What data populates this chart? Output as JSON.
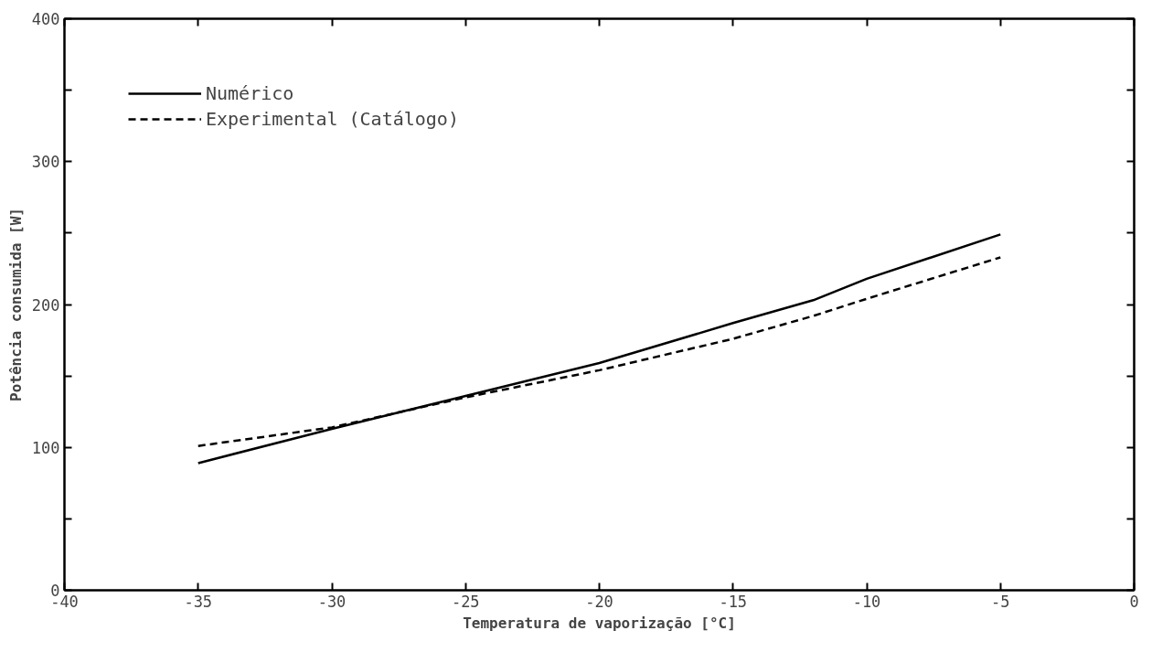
{
  "chart_data": {
    "type": "line",
    "xlabel": "Temperatura de vaporização [°C]",
    "ylabel": "Potência consumida [W]",
    "xlim": [
      -40,
      0
    ],
    "ylim": [
      0,
      400
    ],
    "xticks": [
      -40,
      -35,
      -30,
      -25,
      -20,
      -15,
      -10,
      -5,
      0
    ],
    "yticks": [
      0,
      {
        "value": 50,
        "label": null
      },
      100,
      {
        "value": 150,
        "label": null
      },
      200,
      {
        "value": 250,
        "label": null
      },
      300,
      {
        "value": 350,
        "label": null
      },
      400
    ],
    "grid": false,
    "legend": "top left",
    "marker": "none",
    "x": [
      -35,
      -30,
      -25,
      -20,
      -15,
      -12,
      -10,
      -5
    ],
    "series": [
      {
        "name": "Numérico",
        "color": "#000000",
        "line_style": "solid",
        "values": [
          89,
          113,
          136,
          159,
          187,
          203,
          218,
          249
        ]
      },
      {
        "name": "Experimental (Catálogo)",
        "color": "#000000",
        "line_style": "dashed",
        "values": [
          101,
          114,
          135,
          154,
          176,
          192,
          204,
          233
        ]
      }
    ]
  }
}
